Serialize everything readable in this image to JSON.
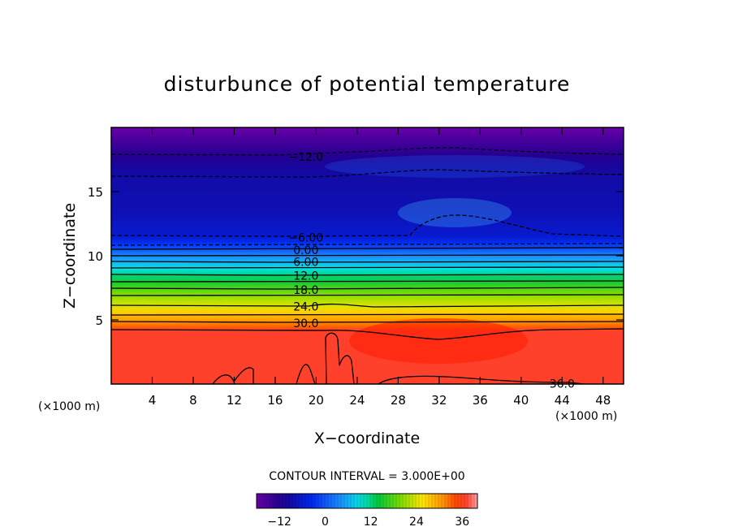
{
  "chart_data": {
    "type": "heatmap",
    "title": "disturbunce of potential temperature",
    "xlabel": "X−coordinate",
    "ylabel": "Z−coordinate",
    "x_unit": "(×1000 m)",
    "xlim": [
      0,
      50
    ],
    "ylim": [
      0,
      20
    ],
    "x_ticks": [
      4,
      8,
      12,
      16,
      20,
      24,
      28,
      32,
      36,
      40,
      44,
      48
    ],
    "y_ticks": [
      5,
      10,
      15
    ],
    "contour_interval_text": "CONTOUR INTERVAL = 3.000E+00",
    "contour_labels": [
      {
        "text": "−12.0",
        "x": 19,
        "z": 17.8
      },
      {
        "text": "−6.00",
        "x": 19,
        "z": 11.5
      },
      {
        "text": "0.00",
        "x": 19,
        "z": 10.5
      },
      {
        "text": "6.00",
        "x": 19,
        "z": 9.6
      },
      {
        "text": "12.0",
        "x": 19,
        "z": 8.5
      },
      {
        "text": "18.0",
        "x": 19,
        "z": 7.4
      },
      {
        "text": "24.0",
        "x": 19,
        "z": 6.1
      },
      {
        "text": "30.0",
        "x": 19,
        "z": 4.8
      },
      {
        "text": "36.0",
        "x": 44,
        "z": 0.1
      }
    ],
    "field_levels": [
      {
        "z": 0,
        "value": 37
      },
      {
        "z": 4.2,
        "value": 37
      },
      {
        "z": 4.5,
        "value": 33
      },
      {
        "z": 5,
        "value": 30
      },
      {
        "z": 5.6,
        "value": 27
      },
      {
        "z": 6.1,
        "value": 24
      },
      {
        "z": 6.8,
        "value": 21
      },
      {
        "z": 7.4,
        "value": 18
      },
      {
        "z": 7.9,
        "value": 15
      },
      {
        "z": 8.5,
        "value": 12
      },
      {
        "z": 9.0,
        "value": 9
      },
      {
        "z": 9.6,
        "value": 6
      },
      {
        "z": 10.1,
        "value": 3
      },
      {
        "z": 10.5,
        "value": 0
      },
      {
        "z": 11,
        "value": -3
      },
      {
        "z": 11.5,
        "value": -6
      },
      {
        "z": 13.5,
        "value": -8
      },
      {
        "z": 16.2,
        "value": -9
      },
      {
        "z": 17.8,
        "value": -12
      },
      {
        "z": 19,
        "value": -15
      },
      {
        "z": 20,
        "value": -18
      }
    ],
    "colorbar": {
      "min": -18,
      "max": 40,
      "tick_values": [
        -12,
        0,
        12,
        24,
        36
      ],
      "tick_labels": [
        "−12",
        "0",
        "12",
        "24",
        "36"
      ]
    }
  }
}
